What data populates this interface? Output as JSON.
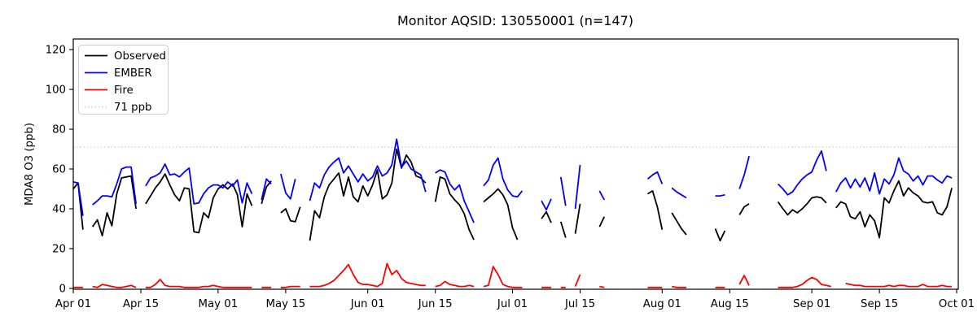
{
  "title": "Monitor AQSID: 130550001 (n=147)",
  "chart_data": {
    "type": "line",
    "title": "Monitor AQSID: 130550001 (n=147)",
    "xlabel": "",
    "ylabel": "MDA8 O3 (ppb)",
    "ylim": [
      0,
      125
    ],
    "grid": false,
    "legend_position": "upper-left",
    "x_unit": "days since Apr 01",
    "x_tick_days": [
      0,
      14,
      30,
      44,
      61,
      75,
      91,
      105,
      122,
      136,
      153,
      167,
      183
    ],
    "x_tick_labels": [
      "Apr 01",
      "Apr 15",
      "May 01",
      "May 15",
      "Jun 01",
      "Jun 15",
      "Jul 01",
      "Jul 15",
      "Aug 01",
      "Aug 15",
      "Sep 01",
      "Sep 15",
      "Oct 01"
    ],
    "y_ticks": [
      0,
      20,
      40,
      60,
      80,
      100,
      120
    ],
    "threshold": {
      "label": "71 ppb",
      "value": 71,
      "color": "#d3d3d3",
      "style": "dotted"
    },
    "legend": [
      "Observed",
      "EMBER",
      "Fire",
      "71 ppb"
    ],
    "series": [
      {
        "name": "Observed",
        "color": "#000000",
        "values": [
          50,
          53,
          29.5,
          null,
          31,
          34.5,
          26.5,
          38,
          31.5,
          47.5,
          55.5,
          56,
          56.5,
          40,
          null,
          42.5,
          46.5,
          50.5,
          53.5,
          57.5,
          52,
          47,
          44,
          50.5,
          50,
          28.5,
          28,
          38,
          35.5,
          45.5,
          50,
          52,
          50,
          52.5,
          47,
          31,
          47.5,
          41.5,
          null,
          42.5,
          51,
          54,
          null,
          38,
          40,
          34,
          33.5,
          41,
          null,
          24,
          39,
          35.5,
          46,
          52,
          55,
          58,
          46.5,
          56,
          46,
          43.5,
          51.5,
          46.5,
          52,
          59.5,
          45,
          47,
          53,
          70,
          60.5,
          67,
          63.5,
          56.5,
          55.5,
          53,
          null,
          43.5,
          56,
          55,
          47.5,
          44.5,
          42,
          37.5,
          29.5,
          24.5,
          null,
          43.5,
          45.5,
          47.5,
          50,
          47,
          42,
          30.5,
          24.5,
          null,
          null,
          null,
          null,
          35,
          38.5,
          33,
          null,
          33.5,
          25.5,
          null,
          27.5,
          42.5,
          null,
          null,
          null,
          31,
          36,
          null,
          null,
          null,
          null,
          null,
          null,
          null,
          null,
          47.5,
          49,
          41,
          29.5,
          null,
          38,
          34,
          30,
          27,
          null,
          null,
          null,
          null,
          null,
          30,
          24,
          29,
          null,
          null,
          37,
          41,
          42.5,
          null,
          null,
          null,
          null,
          null,
          43.5,
          40,
          37,
          39.5,
          38,
          40,
          42.5,
          45.5,
          46,
          45.5,
          43,
          null,
          40.5,
          43.5,
          42.5,
          36,
          35,
          38.5,
          31,
          37,
          34,
          25.5,
          45.5,
          43,
          49,
          54,
          46.5,
          50.5,
          48,
          46.5,
          43.5,
          43,
          43.5,
          38,
          37,
          41,
          50.5
        ]
      },
      {
        "name": "EMBER",
        "color": "#0000ff",
        "values": [
          53.5,
          53,
          36.5,
          null,
          42,
          44,
          46.5,
          46.5,
          46,
          52.5,
          60,
          61,
          61,
          42.5,
          null,
          51.5,
          55.5,
          56.5,
          58,
          62.5,
          57,
          57.5,
          56,
          58.5,
          60.5,
          42.5,
          43,
          47.5,
          50.5,
          52,
          52,
          50.5,
          53.5,
          51.5,
          54.5,
          43,
          53,
          47.5,
          null,
          44.5,
          55,
          52.5,
          null,
          57.5,
          48,
          45,
          55,
          null,
          null,
          44,
          53,
          50.5,
          57,
          61,
          63.5,
          65.5,
          58,
          61.5,
          57.5,
          53.5,
          57.5,
          54,
          56,
          61.5,
          56.5,
          58,
          62,
          75,
          61,
          64,
          60,
          58.5,
          57,
          48.5,
          null,
          58,
          59.5,
          58.5,
          52.5,
          49.5,
          52,
          44,
          38.5,
          33,
          null,
          51.5,
          54.5,
          62,
          65.5,
          55,
          49.5,
          46.5,
          46,
          49,
          null,
          null,
          null,
          44,
          39.5,
          45,
          null,
          56,
          41.5,
          null,
          40,
          62,
          null,
          null,
          null,
          49,
          44.5,
          null,
          null,
          null,
          null,
          null,
          null,
          null,
          null,
          55,
          57,
          58.5,
          52.5,
          null,
          50.5,
          48.5,
          47,
          45.5,
          null,
          null,
          null,
          null,
          null,
          46.5,
          46.5,
          47,
          null,
          null,
          50,
          57,
          66.5,
          null,
          null,
          null,
          null,
          null,
          52.5,
          50,
          47,
          48.5,
          52,
          55,
          57,
          58.5,
          64.5,
          69,
          59,
          null,
          48.5,
          53,
          55.5,
          50.5,
          55,
          51,
          55.5,
          49,
          58,
          47.5,
          55,
          52.5,
          57,
          65.5,
          59,
          57.5,
          54,
          56.5,
          52,
          56.5,
          56.5,
          54.5,
          53,
          56.5,
          55.5
        ]
      },
      {
        "name": "Fire",
        "color": "#ff0000",
        "values": [
          0.5,
          0.5,
          0.5,
          null,
          1,
          0.5,
          2,
          1.5,
          1,
          0.5,
          0.5,
          1,
          1.5,
          0.5,
          null,
          0.5,
          0.5,
          2,
          4.5,
          1.5,
          1,
          1,
          1,
          0.5,
          0.5,
          0.5,
          0.5,
          1,
          1,
          1.5,
          1,
          0.5,
          0.5,
          0.5,
          0.5,
          0.5,
          0.5,
          0.5,
          null,
          0.5,
          0.5,
          0.5,
          null,
          0.5,
          0.5,
          1,
          1,
          1,
          null,
          1,
          1,
          1,
          1.5,
          2.5,
          4,
          6.5,
          9,
          12,
          7,
          3,
          2,
          2,
          1.5,
          1,
          2.5,
          12.5,
          7,
          9,
          5,
          3,
          2.5,
          2,
          1.5,
          1.5,
          null,
          1,
          1.5,
          3.5,
          2,
          1.5,
          1,
          1,
          1.5,
          1,
          null,
          1,
          1.5,
          11,
          7,
          2,
          1,
          0.5,
          0.5,
          0.5,
          null,
          null,
          null,
          0.5,
          0.5,
          0.5,
          null,
          0.5,
          0.5,
          null,
          1,
          7,
          null,
          null,
          null,
          1,
          0.5,
          null,
          null,
          null,
          null,
          null,
          null,
          null,
          null,
          0.5,
          0.5,
          0.5,
          0.5,
          null,
          1,
          0.5,
          0.5,
          0.5,
          null,
          null,
          null,
          null,
          null,
          0.5,
          0.5,
          0.5,
          null,
          null,
          2,
          6.5,
          1.5,
          null,
          null,
          null,
          null,
          null,
          0.5,
          0.5,
          0.5,
          0.5,
          1,
          2,
          4,
          5.5,
          4.5,
          2,
          1.5,
          1,
          null,
          null,
          2.5,
          2,
          1.5,
          1.5,
          1,
          1,
          1,
          1,
          1,
          1.5,
          1,
          1.5,
          1.5,
          1,
          1,
          1,
          2,
          1,
          1,
          1,
          1.5,
          1,
          1
        ]
      }
    ]
  }
}
